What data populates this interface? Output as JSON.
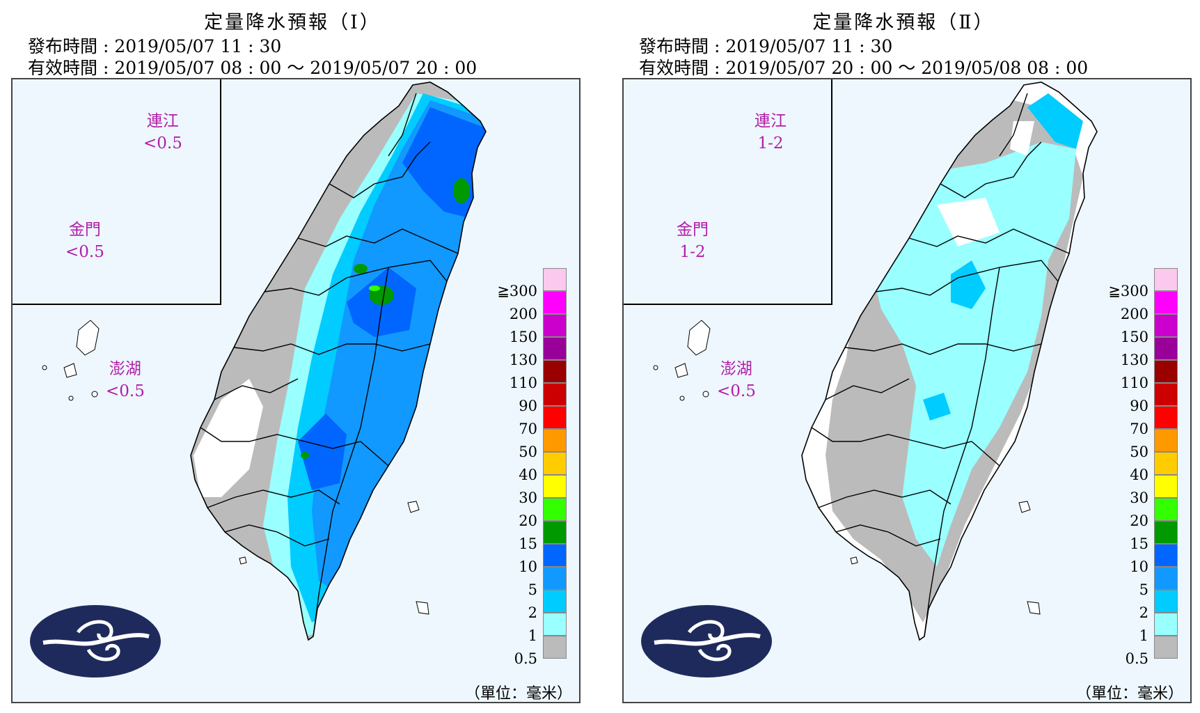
{
  "panels": [
    {
      "title": "定量降水預報（Ⅰ）",
      "issue_label": "發布時間",
      "issue_time": "2019/05/07 11 : 30",
      "valid_label": "有效時間",
      "valid_time": "2019/05/07 08 : 00 ～ 2019/05/07 20 : 00",
      "islands": {
        "matsu": {
          "name": "連江",
          "value": "<0.5"
        },
        "kinmen": {
          "name": "金門",
          "value": "<0.5"
        },
        "penghu": {
          "name": "澎湖",
          "value": "<0.5"
        }
      },
      "rain_intensity": "wet"
    },
    {
      "title": "定量降水預報（Ⅱ）",
      "issue_label": "發布時間",
      "issue_time": "2019/05/07 11 : 30",
      "valid_label": "有效時間",
      "valid_time": "2019/05/07 20 : 00 ～ 2019/05/08 08 : 00",
      "islands": {
        "matsu": {
          "name": "連江",
          "value": "1-2"
        },
        "kinmen": {
          "name": "金門",
          "value": "1-2"
        },
        "penghu": {
          "name": "澎湖",
          "value": "<0.5"
        }
      },
      "rain_intensity": "light"
    }
  ],
  "legend": {
    "levels": [
      "≧300",
      "200",
      "150",
      "130",
      "110",
      "90",
      "70",
      "50",
      "40",
      "30",
      "20",
      "15",
      "10",
      "5",
      "2",
      "1",
      "0.5"
    ],
    "colors": [
      "#fbc8ee",
      "#ff00ff",
      "#cc00cc",
      "#990099",
      "#990000",
      "#cc0000",
      "#ff0000",
      "#ff9900",
      "#ffcc00",
      "#ffff00",
      "#33ff00",
      "#009900",
      "#0066ff",
      "#1199ff",
      "#00ccff",
      "#99ffff",
      "#bbbbbb"
    ]
  },
  "unit_label": "（單位：毫米）",
  "colors": {
    "land_none": "#ffffff",
    "rain_0_5": "#bbbbbb",
    "rain_1": "#99ffff",
    "rain_2": "#00ccff",
    "rain_5": "#1199ff",
    "rain_10": "#0066ff",
    "rain_15": "#009900",
    "rain_20": "#33ff00",
    "sea": "#eef7fd",
    "island_label": "#b31da8",
    "logo_navy": "#1f2a5c"
  }
}
